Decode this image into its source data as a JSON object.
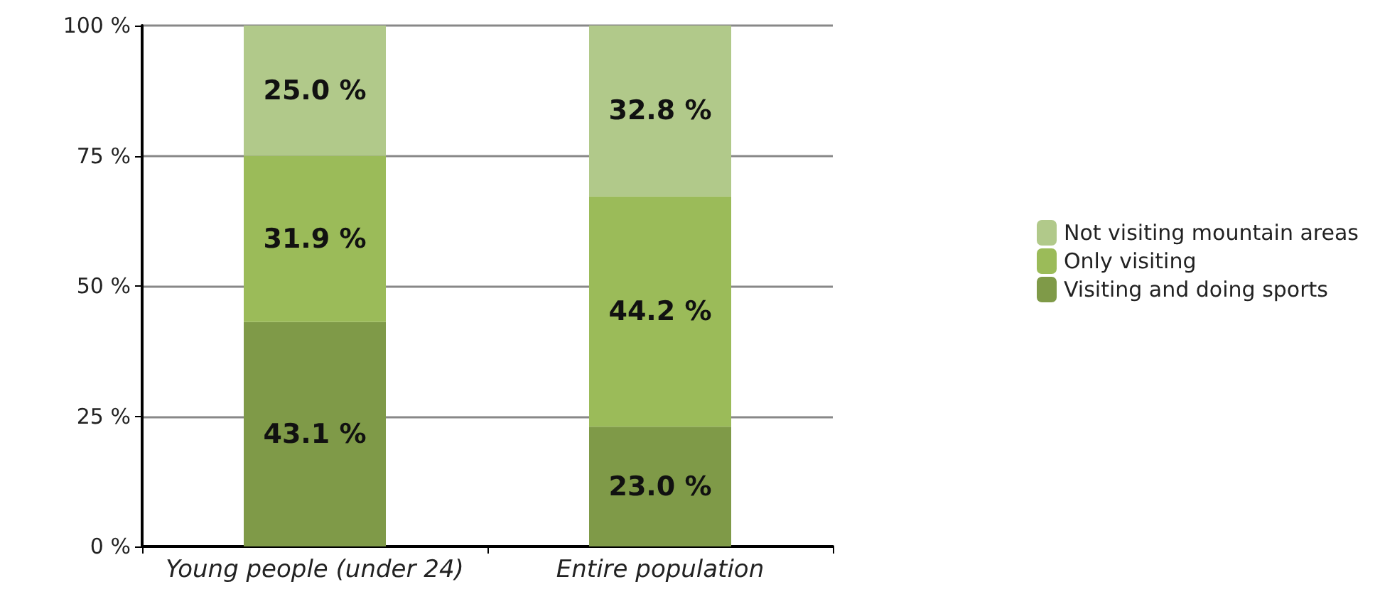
{
  "chart_data": {
    "type": "bar",
    "stacked": true,
    "categories": [
      "Young people (under 24)",
      "Entire population"
    ],
    "series": [
      {
        "name": "Visiting and doing sports",
        "color": "#7f9a48",
        "values": [
          43.1,
          23.0
        ],
        "value_labels": [
          "43.1 %",
          "23.0 %"
        ]
      },
      {
        "name": "Only visiting",
        "color": "#9bbb59",
        "values": [
          31.9,
          44.2
        ],
        "value_labels": [
          "31.9 %",
          "44.2 %"
        ]
      },
      {
        "name": "Not visiting mountain areas",
        "color": "#b1c98a",
        "values": [
          25.0,
          32.8
        ],
        "value_labels": [
          "25.0 %",
          "32.8 %"
        ]
      }
    ],
    "ylim": [
      0,
      100
    ],
    "yticks": [
      {
        "value": 0,
        "label": "0 %"
      },
      {
        "value": 25,
        "label": "25 %"
      },
      {
        "value": 50,
        "label": "50 %"
      },
      {
        "value": 75,
        "label": "75 %"
      },
      {
        "value": 100,
        "label": "100 %"
      }
    ],
    "grid": "y",
    "legend": "right"
  }
}
